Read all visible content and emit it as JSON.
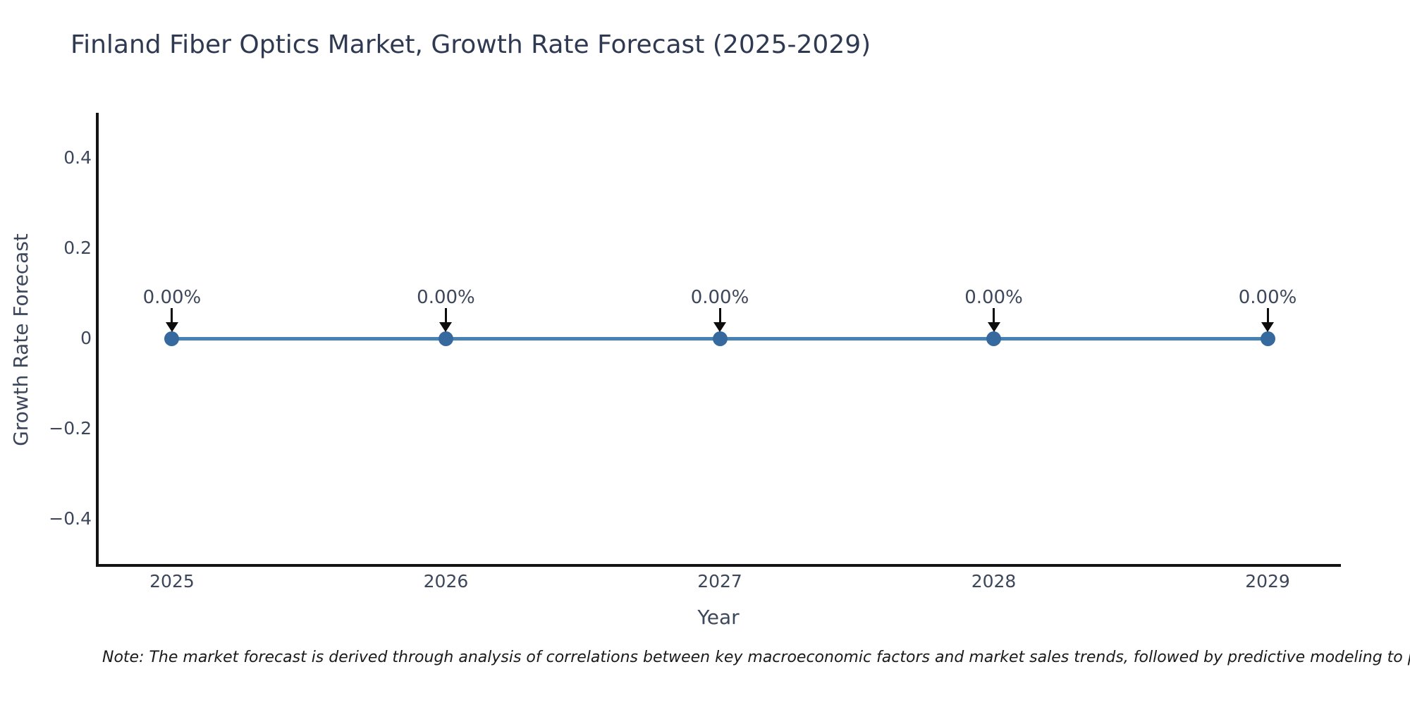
{
  "header": {
    "title": "Finland Fiber Optics Market, Growth Rate Forecast (2025-2029)"
  },
  "chart_data": {
    "type": "line",
    "title": "Finland Fiber Optics Market, Growth Rate Forecast (2025-2029)",
    "xlabel": "Year",
    "ylabel": "Growth Rate Forecast",
    "categories": [
      "2025",
      "2026",
      "2027",
      "2028",
      "2029"
    ],
    "series": [
      {
        "name": "Growth Rate Forecast",
        "values": [
          0,
          0,
          0,
          0,
          0
        ]
      }
    ],
    "point_labels": [
      "0.00%",
      "0.00%",
      "0.00%",
      "0.00%",
      "0.00%"
    ],
    "ylim": [
      -0.5,
      0.5
    ],
    "yticks": [
      {
        "value": -0.4,
        "label": "−0.4"
      },
      {
        "value": -0.2,
        "label": "−0.2"
      },
      {
        "value": 0,
        "label": "0"
      },
      {
        "value": 0.2,
        "label": "0.2"
      },
      {
        "value": 0.4,
        "label": "0.4"
      }
    ],
    "grid": false,
    "legend": "none",
    "colors": {
      "line": "#4682b4",
      "marker": "#36699e",
      "arrow": "#0d0d0d",
      "spine": "#131313",
      "title_text": "#2f3a52",
      "axis_text": "#3d475c"
    }
  },
  "note": {
    "text": "Note: The market forecast is derived through analysis of correlations between key macroeconomic factors and market sales trends, followed by predictive modeling to project future sa"
  }
}
